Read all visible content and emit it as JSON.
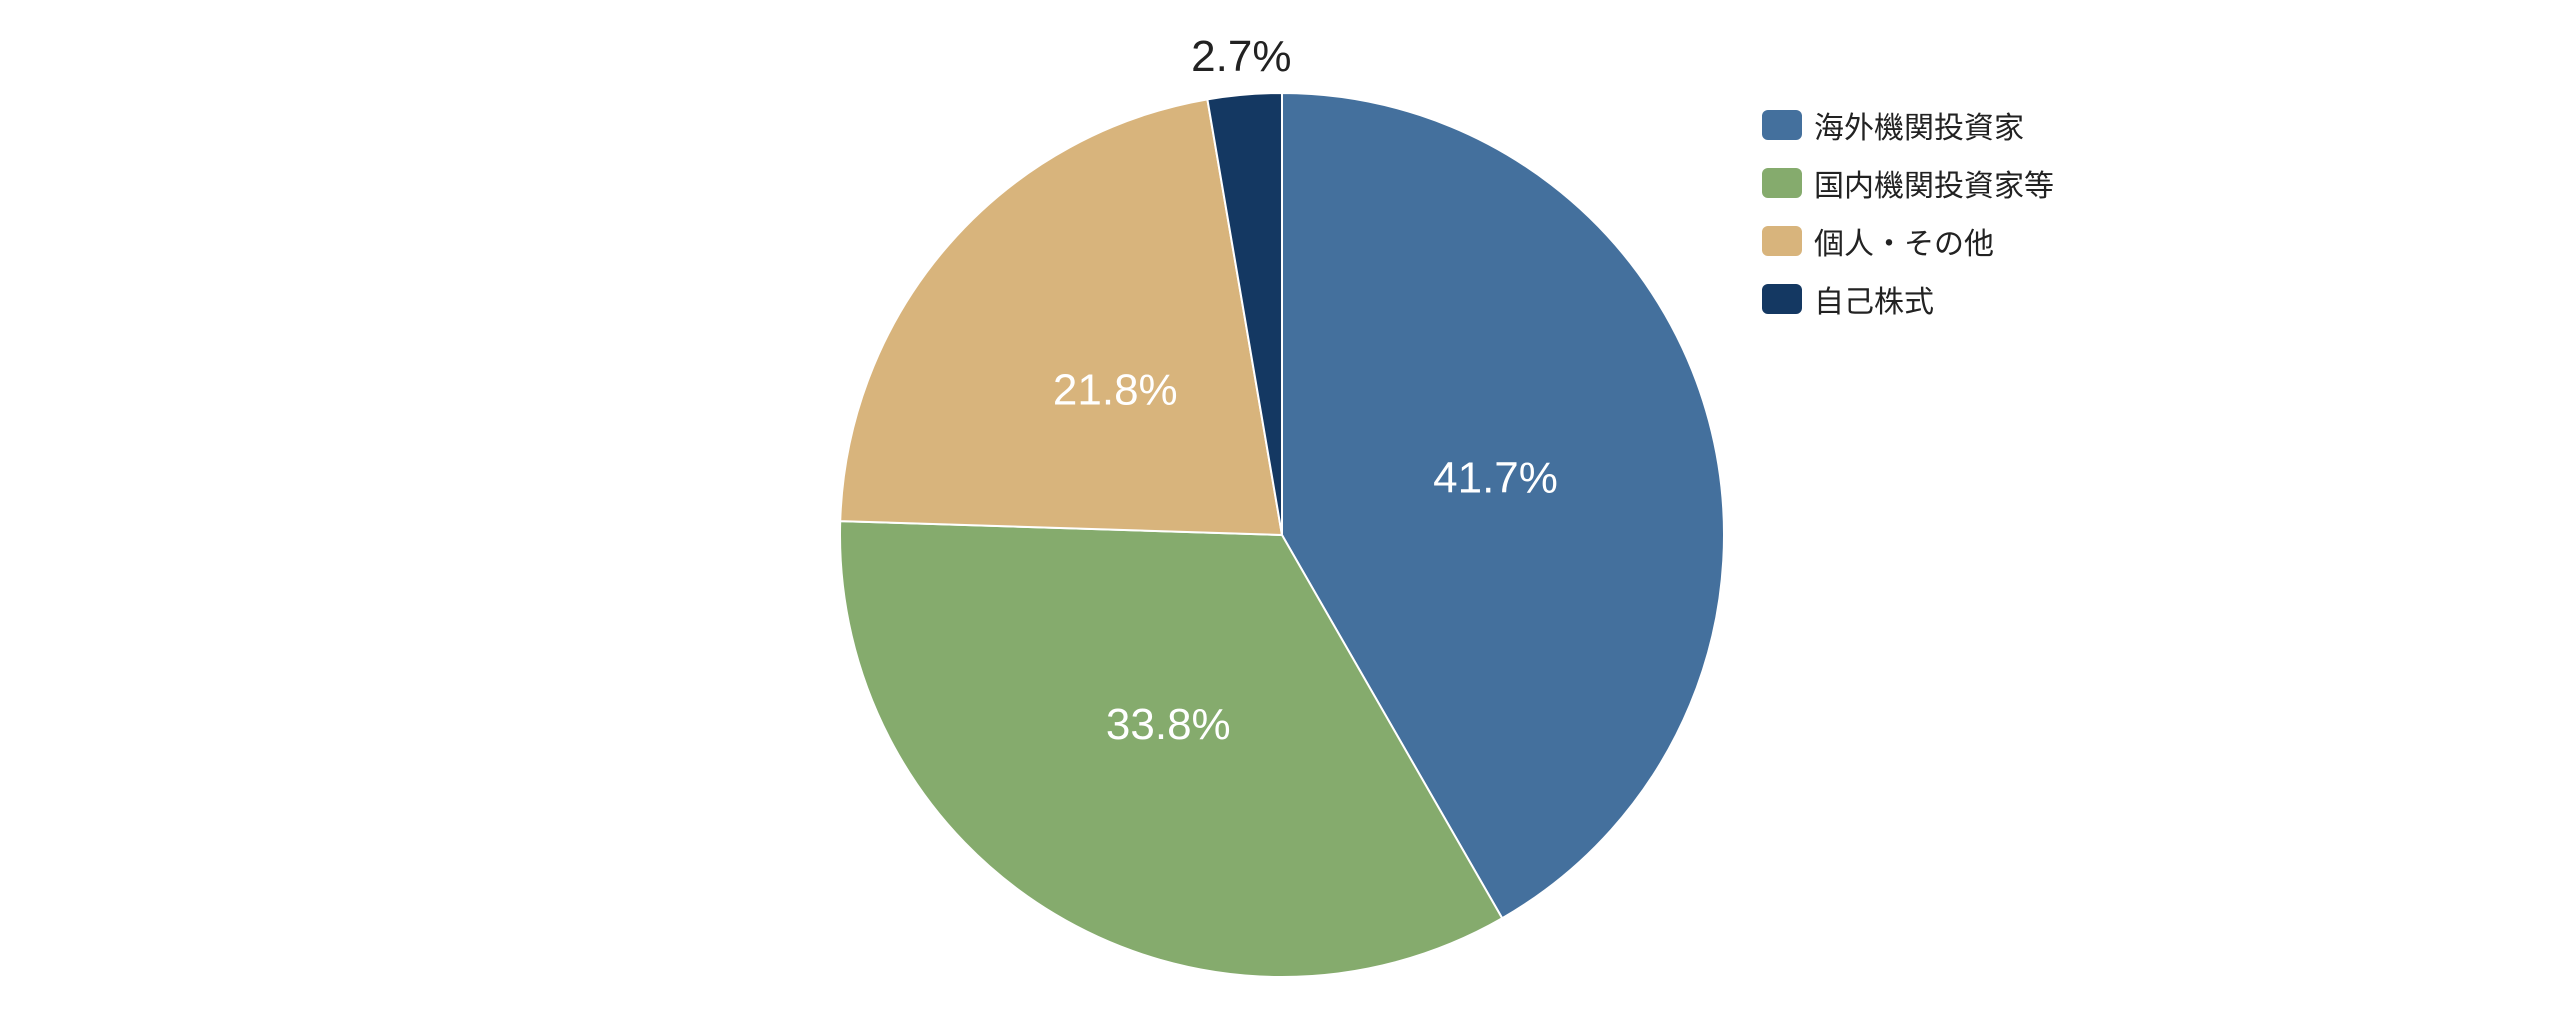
{
  "chart_data": {
    "type": "pie",
    "categories": [
      "海外機関投資家",
      "国内機関投資家等",
      "個人・その他",
      "自己株式"
    ],
    "values": [
      41.7,
      33.8,
      21.8,
      2.7
    ],
    "labels": [
      "41.7%",
      "33.8%",
      "21.8%",
      "2.7%"
    ],
    "colors": [
      "#44709d",
      "#85ab6d",
      "#d8b47c",
      "#143862"
    ],
    "label_colors": [
      "#ffffff",
      "#ffffff",
      "#ffffff",
      "#222222"
    ],
    "start": "12 o'clock",
    "direction": "clockwise",
    "legend_position": "top-right"
  }
}
